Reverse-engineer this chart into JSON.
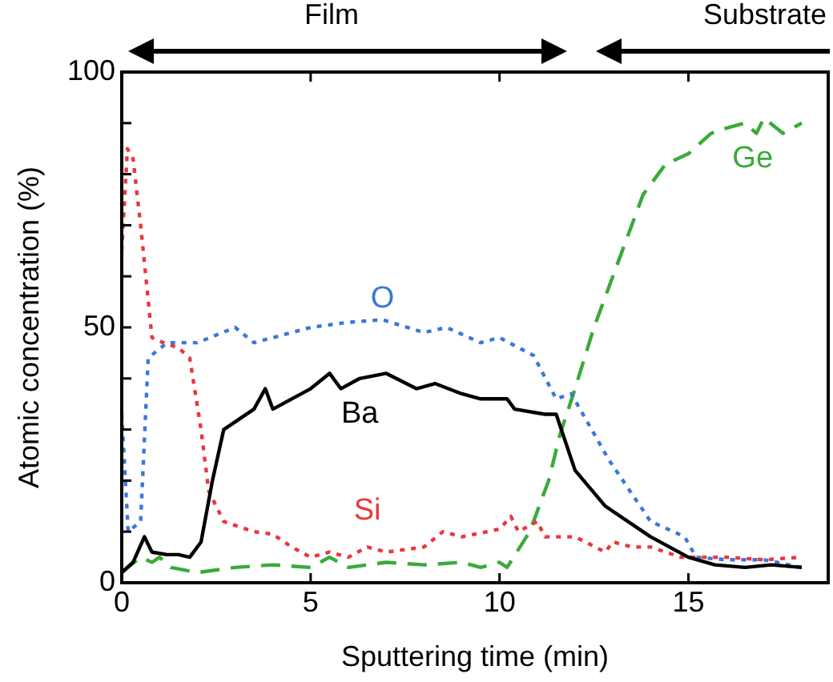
{
  "chart_data": {
    "type": "line",
    "xlabel": "Sputtering time (min)",
    "ylabel": "Atomic concentration (%)",
    "xlim": [
      0,
      18.7
    ],
    "xticks": [
      0,
      5,
      10,
      15
    ],
    "ylim": [
      0,
      100
    ],
    "yticks": [
      0,
      {
        "value": 10,
        "label": null
      },
      {
        "value": 20,
        "label": null
      },
      {
        "value": 30,
        "label": null
      },
      {
        "value": 40,
        "label": null
      },
      50,
      {
        "value": 60,
        "label": null
      },
      {
        "value": 70,
        "label": null
      },
      {
        "value": 80,
        "label": null
      },
      {
        "value": 90,
        "label": null
      },
      100
    ],
    "grid": false,
    "legend": false,
    "marker": "none",
    "annotations": [
      "Film",
      "Substrate"
    ],
    "series": [
      {
        "name": "Ba",
        "color": "#000000",
        "line_style": "solid",
        "x": [
          0,
          0.3,
          0.6,
          0.8,
          1.2,
          1.5,
          1.8,
          2.1,
          2.4,
          2.7,
          3.1,
          3.5,
          3.8,
          4,
          4.5,
          5,
          5.5,
          5.8,
          6.3,
          7,
          7.8,
          8.3,
          9,
          9.5,
          10,
          10.2,
          10.4,
          11.2,
          11.5,
          12,
          12.8,
          14,
          15,
          15.7,
          16.5,
          17.2,
          18
        ],
        "values": [
          2,
          4,
          9,
          6,
          5.5,
          5.5,
          5,
          8,
          20,
          30,
          32,
          34,
          38,
          34,
          36,
          38,
          41,
          38,
          40,
          41,
          38,
          39,
          37,
          36,
          36,
          36,
          34,
          33,
          33,
          22,
          15,
          9,
          5,
          3.5,
          3,
          3.5,
          3
        ]
      },
      {
        "name": "O",
        "color": "#3b78d8",
        "line_style": "dotted",
        "x": [
          0,
          0.17,
          0.5,
          0.7,
          1.2,
          2,
          3,
          3.5,
          4,
          5,
          6,
          6.9,
          8,
          8.6,
          9.5,
          10,
          10.9,
          11.5,
          11.9,
          12.9,
          14,
          14.9,
          15.2,
          16,
          17,
          18
        ],
        "values": [
          33,
          10,
          12,
          44,
          47,
          47,
          50,
          47,
          48,
          50,
          51,
          51.5,
          49,
          50,
          47,
          48,
          44.5,
          36,
          37,
          24,
          12,
          9,
          5,
          4.5,
          4.5,
          3
        ]
      },
      {
        "name": "Si",
        "color": "#e8383d",
        "line_style": "dotted",
        "x": [
          0,
          0.15,
          0.3,
          0.5,
          0.8,
          1.1,
          1.5,
          1.8,
          2.1,
          2.3,
          2.7,
          3.5,
          4,
          4.5,
          5,
          5.5,
          6,
          6.5,
          7,
          8,
          8.5,
          9,
          10,
          10.3,
          10.5,
          11,
          11.2,
          12,
          12.8,
          13,
          13.5,
          14,
          14.8,
          15,
          16,
          17,
          18
        ],
        "values": [
          65,
          85,
          83,
          70,
          48,
          47,
          46,
          44,
          30,
          18,
          12,
          10,
          9.5,
          7,
          5,
          6,
          5,
          7,
          6,
          7,
          10,
          9,
          10.5,
          13,
          10,
          12,
          9,
          9,
          6,
          8,
          7,
          7,
          5,
          5,
          5,
          4.5,
          5
        ]
      },
      {
        "name": "Ge",
        "color": "#3aaa3a",
        "line_style": "dashed",
        "x": [
          0,
          0.5,
          0.8,
          1,
          1.3,
          2,
          3,
          4,
          5,
          5.5,
          6,
          7,
          8,
          9,
          9.5,
          10,
          10.2,
          10.8,
          11.3,
          11.6,
          12,
          12.5,
          13.1,
          13.3,
          13.8,
          14.4,
          15,
          15.6,
          16,
          16.5,
          16.8,
          17,
          17.5,
          18
        ],
        "values": [
          2,
          5,
          4,
          5,
          3,
          2,
          3,
          3.5,
          3,
          5,
          3,
          4,
          3.5,
          4,
          3,
          4,
          3,
          10,
          20,
          29,
          38,
          50,
          62,
          66,
          76,
          82,
          84,
          88,
          89,
          90,
          88,
          91,
          88,
          90
        ]
      }
    ]
  }
}
